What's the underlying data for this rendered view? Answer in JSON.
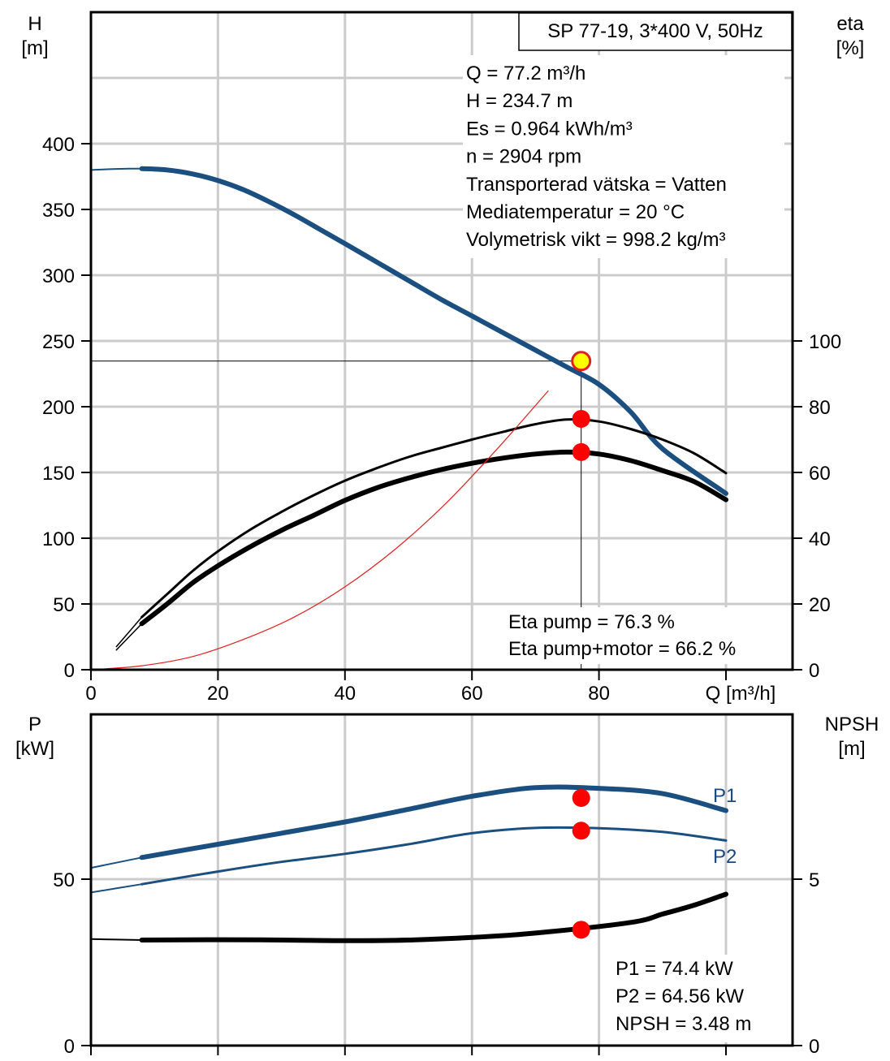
{
  "chart_data": [
    {
      "type": "line",
      "title": "SP 77-19, 3*400 V, 50Hz",
      "xlabel": "Q [m³/h]",
      "xlim": [
        0,
        110
      ],
      "x_ticks": [
        0,
        20,
        40,
        60,
        80
      ],
      "ylabel_left": [
        "H",
        "[m]"
      ],
      "ylim_left": [
        0,
        400
      ],
      "y_ticks_left": [
        0,
        50,
        100,
        150,
        200,
        250,
        300,
        350,
        400
      ],
      "ylabel_right": [
        "eta",
        "[%]"
      ],
      "ylim_right": [
        0,
        100
      ],
      "y_ticks_right": [
        0,
        20,
        40,
        60,
        80,
        100
      ],
      "grid": true,
      "info_lines": [
        "Q = 77.2 m³/h",
        "H = 234.7 m",
        "Es = 0.964 kWh/m³",
        "n = 2904 rpm",
        "Transporterad vätska = Vatten",
        "Mediatemperatur = 20 °C",
        "Volymetrisk vikt = 998.2 kg/m³"
      ],
      "eta_lines": [
        "Eta pump = 76.3 %",
        "Eta pump+motor = 66.2 %"
      ],
      "series": [
        {
          "axis": "left",
          "color": "#1a4f80",
          "width": 6,
          "x": [
            8,
            12,
            16,
            20,
            24,
            28,
            32,
            36,
            40,
            45,
            50,
            55,
            60,
            65,
            70,
            75,
            77.2,
            80,
            85,
            90,
            100
          ],
          "y": [
            381,
            380,
            377,
            372,
            365,
            356,
            346,
            335,
            324,
            310,
            296,
            282,
            269,
            256,
            243,
            230,
            234.7,
            217,
            196,
            168,
            134
          ]
        },
        {
          "axis": "left",
          "color": "#1a4f80",
          "width": 2,
          "x": [
            0,
            3,
            6,
            8
          ],
          "y": [
            380,
            380.6,
            381,
            381
          ]
        },
        {
          "axis": "right",
          "color": "#000000",
          "width": 3,
          "x": [
            8,
            12,
            16,
            20,
            25,
            30,
            35,
            40,
            45,
            50,
            55,
            60,
            65,
            70,
            75,
            77.2,
            80,
            85,
            90,
            95,
            100
          ],
          "y": [
            16,
            23,
            30,
            36,
            42.5,
            48,
            53,
            57.5,
            61.3,
            64.7,
            67.4,
            70,
            72.4,
            74.7,
            76.1,
            76.3,
            75.5,
            73.2,
            70,
            65.8,
            59.8
          ]
        },
        {
          "axis": "right",
          "color": "#000000",
          "width": 6,
          "x": [
            8,
            12,
            16,
            20,
            25,
            30,
            35,
            40,
            45,
            50,
            55,
            60,
            65,
            70,
            75,
            77.2,
            80,
            85,
            90,
            95,
            100
          ],
          "y": [
            14,
            20,
            26.4,
            31.6,
            37.3,
            42.4,
            46.9,
            51.5,
            55.3,
            58.3,
            60.8,
            62.8,
            64.4,
            65.6,
            66.2,
            66.2,
            65.6,
            63.6,
            60.6,
            57.2,
            51.7
          ]
        },
        {
          "axis": "right",
          "color": "#000000",
          "width": 1.5,
          "x": [
            4,
            8
          ],
          "y": [
            7,
            16
          ]
        },
        {
          "axis": "right",
          "color": "#000000",
          "width": 1.5,
          "x": [
            4,
            8
          ],
          "y": [
            6,
            14
          ]
        },
        {
          "axis": "left",
          "color": "#e02020",
          "width": 1.2,
          "x": [
            0,
            8,
            16,
            24,
            32,
            40,
            48,
            56,
            64,
            72,
            77.2
          ],
          "y": [
            0,
            3,
            10,
            23,
            40,
            63,
            92,
            127,
            168,
            212,
            234.7
          ]
        }
      ],
      "hline": {
        "y": 234.7,
        "x_from": 0,
        "x_to": 77.2
      },
      "vline": {
        "x": 77.2,
        "y_from_right": 0,
        "y_to_left": 234.7
      },
      "operating_point": {
        "x": 77.2,
        "y": 234.7,
        "fill": "#ffff00",
        "stroke": "#e02020"
      },
      "markers": [
        {
          "x": 77.2,
          "y_right": 76.3,
          "color": "#ff0000"
        },
        {
          "x": 77.2,
          "y_right": 66.2,
          "color": "#ff0000"
        }
      ]
    },
    {
      "type": "line",
      "xlim": [
        0,
        110
      ],
      "x_ticks": [
        0,
        20,
        40,
        60,
        80
      ],
      "ylabel_left": [
        "P",
        "[kW]"
      ],
      "ylim_left": [
        0,
        126
      ],
      "y_ticks_left": [
        0,
        50
      ],
      "ylabel_right": [
        "NPSH",
        "[m]"
      ],
      "ylim_right": [
        0,
        12.6
      ],
      "y_ticks_right": [
        0,
        5
      ],
      "grid": true,
      "info_lines": [
        "P1 = 74.4 kW",
        "P2 = 64.56 kW",
        "NPSH = 3.48 m"
      ],
      "series": [
        {
          "name": "P1",
          "axis": "left",
          "color": "#1a4f80",
          "width": 6,
          "x": [
            8,
            20,
            30,
            40,
            50,
            60,
            70,
            77.2,
            80,
            90,
            100
          ],
          "y": [
            56.5,
            60.5,
            63.8,
            67.2,
            71,
            74.9,
            77.5,
            74.4,
            77.3,
            75.7,
            70.6
          ]
        },
        {
          "axis": "left",
          "color": "#1a4f80",
          "width": 2,
          "x": [
            0,
            8
          ],
          "y": [
            53.4,
            56.5
          ]
        },
        {
          "name": "P2",
          "axis": "left",
          "color": "#1a4f80",
          "width": 3,
          "x": [
            8,
            20,
            30,
            40,
            50,
            60,
            70,
            77.2,
            80,
            90,
            100
          ],
          "y": [
            48.5,
            52.3,
            55.2,
            57.6,
            60.5,
            63.8,
            65.4,
            64.56,
            65.3,
            64.2,
            61.6
          ]
        },
        {
          "axis": "left",
          "color": "#1a4f80",
          "width": 2,
          "x": [
            0,
            8
          ],
          "y": [
            46,
            48.5
          ]
        },
        {
          "axis": "right",
          "color": "#000000",
          "width": 6,
          "x": [
            8,
            20,
            30,
            40,
            50,
            60,
            70,
            77.2,
            85,
            90,
            95,
            100
          ],
          "y": [
            3.17,
            3.18,
            3.17,
            3.15,
            3.17,
            3.25,
            3.38,
            3.48,
            3.7,
            3.95,
            4.22,
            4.55
          ]
        },
        {
          "axis": "right",
          "color": "#000000",
          "width": 2,
          "x": [
            0,
            8
          ],
          "y": [
            3.2,
            3.17
          ]
        }
      ],
      "markers": [
        {
          "x": 77.2,
          "y_left": 74.4,
          "color": "#ff0000"
        },
        {
          "x": 77.2,
          "y_left": 64.56,
          "color": "#ff0000"
        },
        {
          "x": 77.2,
          "y_right": 3.48,
          "color": "#ff0000"
        }
      ]
    }
  ]
}
